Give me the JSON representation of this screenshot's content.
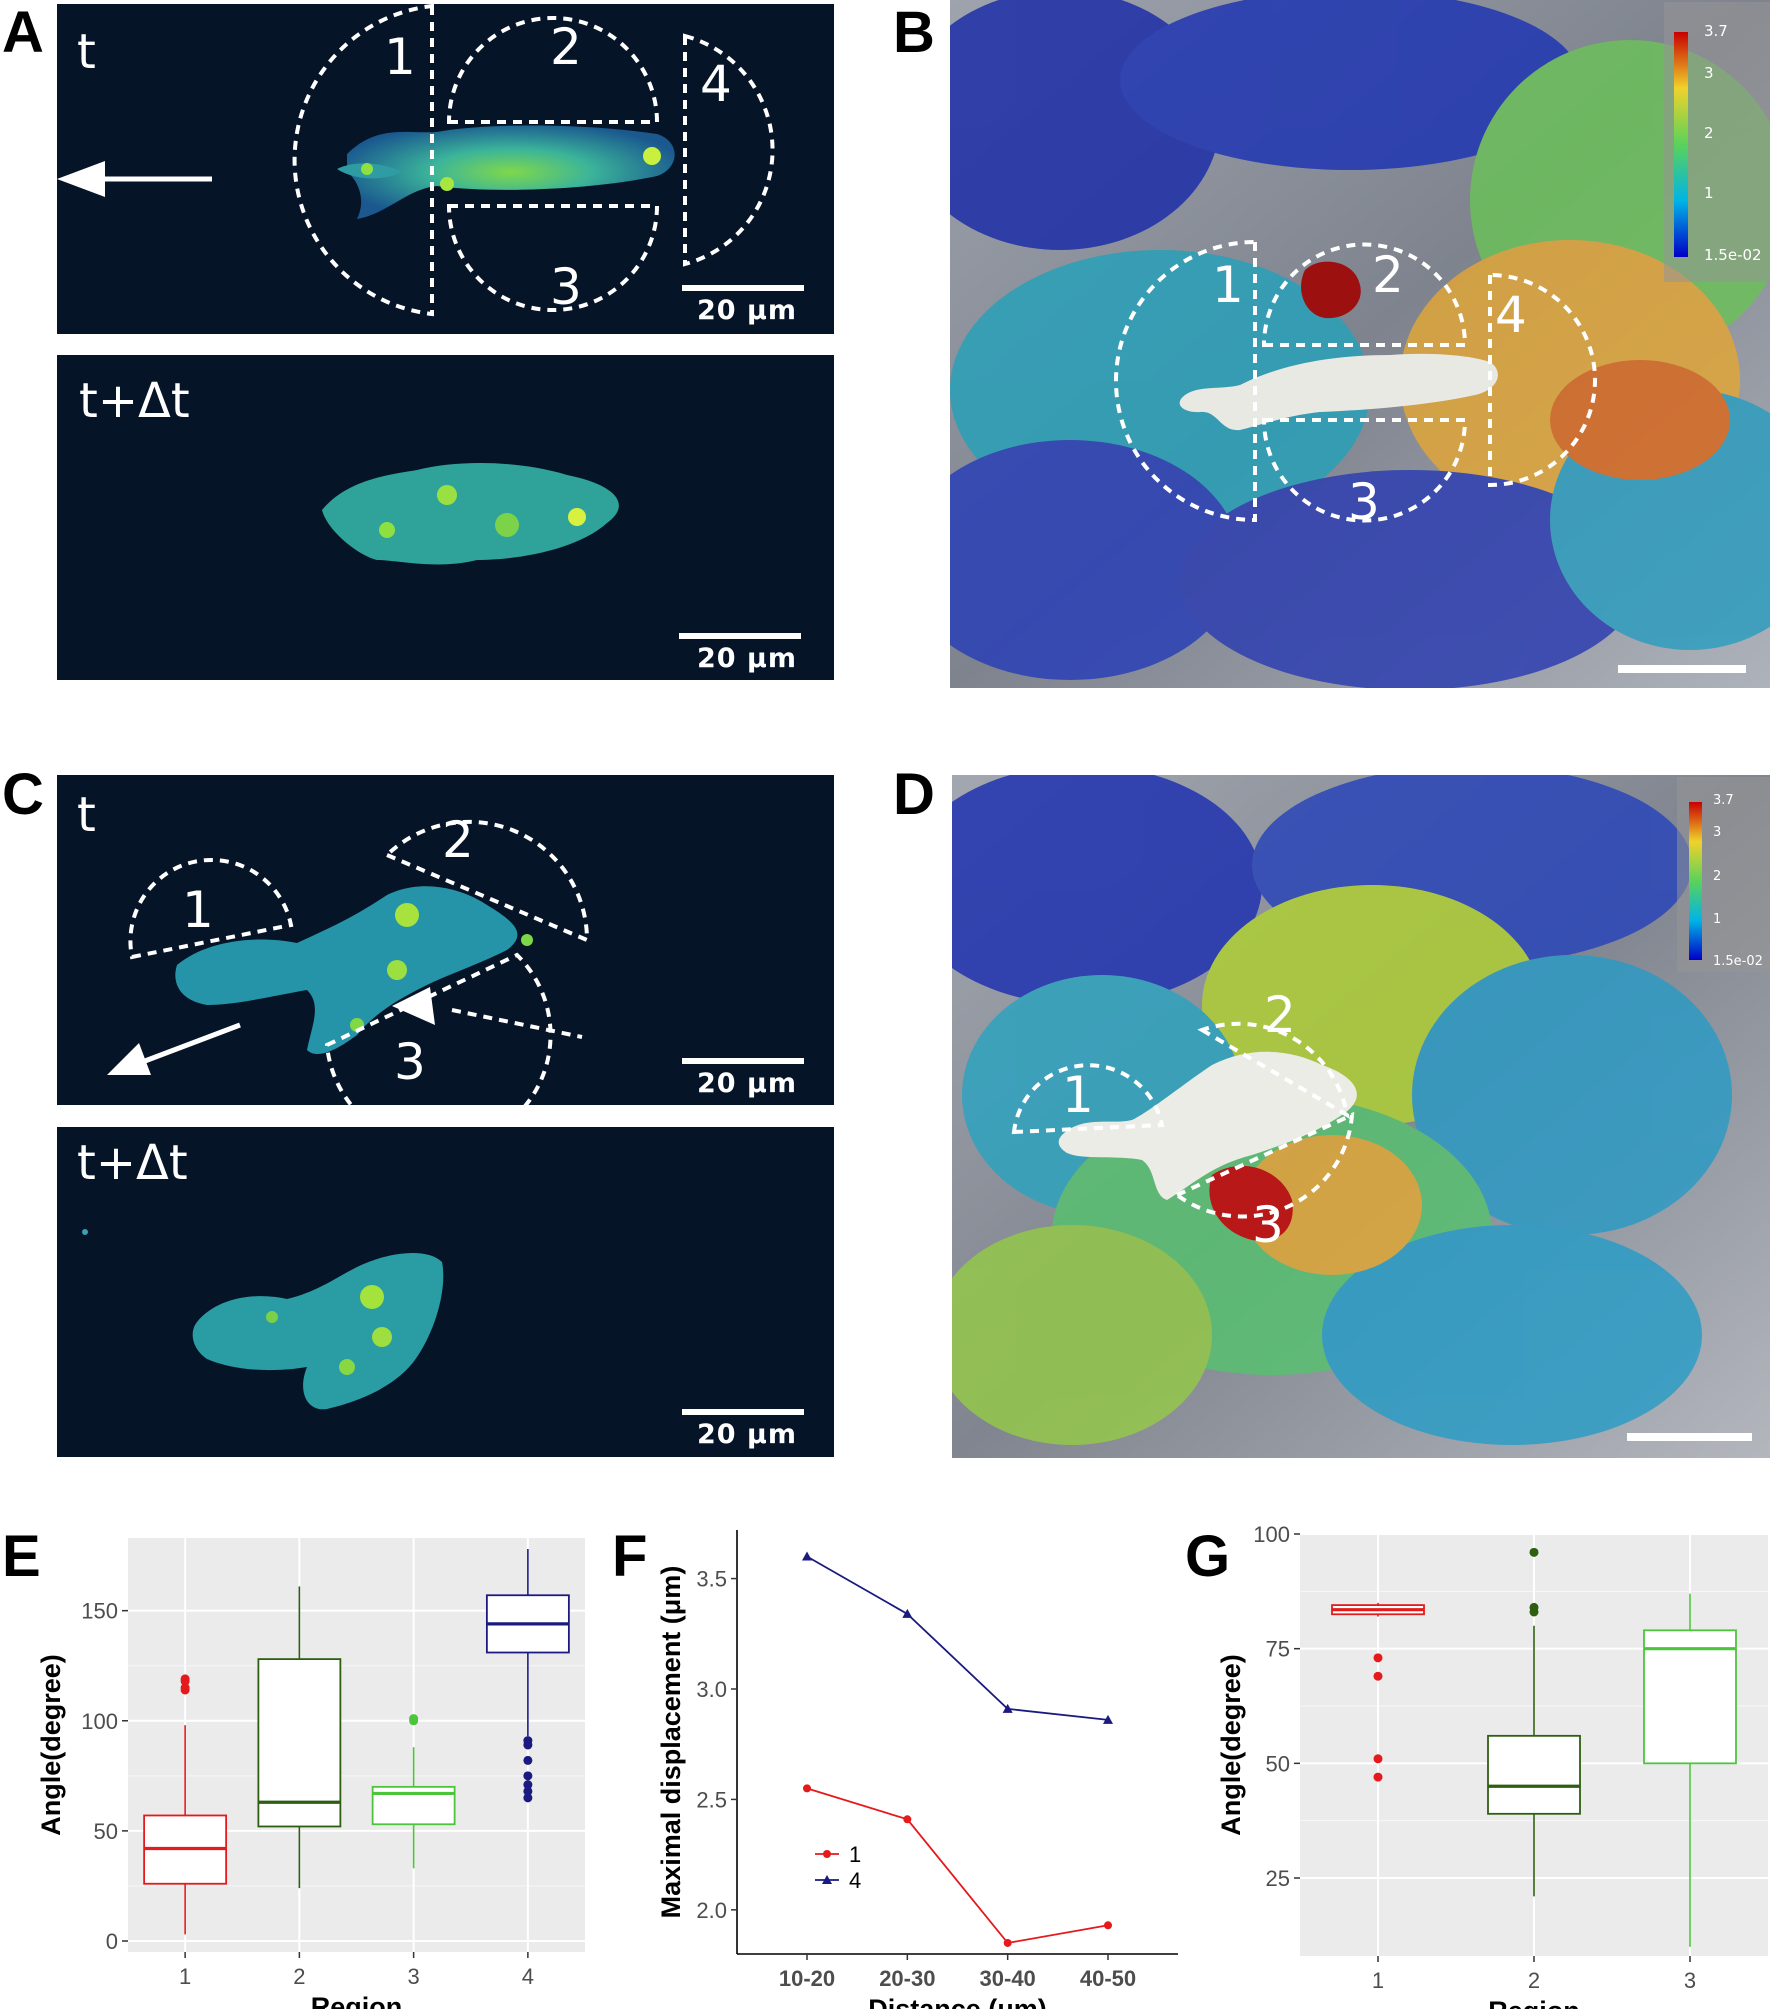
{
  "panels": {
    "A": {
      "letter": "A",
      "t_label": "t",
      "t2_label": "t+Δt",
      "scale_label": "20 μm",
      "scale_label_2": "20 μm",
      "regions": [
        "1",
        "2",
        "3",
        "4"
      ]
    },
    "B": {
      "letter": "B",
      "colorbar_ticks": [
        "3.7",
        "3",
        "2",
        "1",
        "1.5e-02"
      ],
      "regions": [
        "1",
        "2",
        "3",
        "4"
      ]
    },
    "C": {
      "letter": "C",
      "t_label": "t",
      "t2_label": "t+Δt",
      "scale_label": "20 μm",
      "scale_label_2": "20 μm",
      "regions": [
        "1",
        "2",
        "3"
      ]
    },
    "D": {
      "letter": "D",
      "colorbar_ticks": [
        "3.7",
        "3",
        "2",
        "1",
        "1.5e-02"
      ],
      "regions": [
        "1",
        "2",
        "3"
      ]
    },
    "E": {
      "letter": "E"
    },
    "F": {
      "letter": "F"
    },
    "G": {
      "letter": "G"
    }
  },
  "chart_data": [
    {
      "panel": "E",
      "type": "box",
      "xlabel": "Region",
      "ylabel": "Angle(degree)",
      "categories": [
        "1",
        "2",
        "3",
        "4"
      ],
      "ylim": [
        -5,
        183
      ],
      "yticks": [
        0,
        50,
        100,
        150
      ],
      "grid": true,
      "boxes": [
        {
          "category": "1",
          "color": "#e41a1c",
          "lower_whisker": 3,
          "q1": 26,
          "median": 42,
          "q3": 57,
          "upper_whisker": 98,
          "outliers": [
            114,
            115,
            118,
            119
          ]
        },
        {
          "category": "2",
          "color": "#2e5e10",
          "lower_whisker": 24,
          "q1": 52,
          "median": 63,
          "q3": 128,
          "upper_whisker": 161,
          "outliers": []
        },
        {
          "category": "3",
          "color": "#4cc43c",
          "lower_whisker": 33,
          "q1": 53,
          "median": 67,
          "q3": 70,
          "upper_whisker": 88,
          "outliers": [
            100,
            101
          ]
        },
        {
          "category": "4",
          "color": "#1a1a80",
          "lower_whisker": 93,
          "q1": 131,
          "median": 144,
          "q3": 157,
          "upper_whisker": 178,
          "outliers": [
            65,
            68,
            71,
            75,
            82,
            89,
            91
          ]
        }
      ]
    },
    {
      "panel": "F",
      "type": "line",
      "xlabel": "Distance (μm)",
      "ylabel": "Maximal displacement (μm)",
      "categories": [
        "10-20",
        "20-30",
        "30-40",
        "40-50"
      ],
      "ylim": [
        1.8,
        3.72
      ],
      "yticks": [
        2.0,
        2.5,
        3.0,
        3.5
      ],
      "grid": false,
      "legend_position": "bottom-left",
      "series": [
        {
          "name": "1",
          "color": "#e41a1c",
          "marker": "circle",
          "values": [
            2.55,
            2.41,
            1.85,
            1.93
          ]
        },
        {
          "name": "4",
          "color": "#1a1a80",
          "marker": "triangle",
          "values": [
            3.6,
            3.34,
            2.91,
            2.86
          ]
        }
      ]
    },
    {
      "panel": "G",
      "type": "box",
      "xlabel": "Region",
      "ylabel": "Angle(degree)",
      "categories": [
        "1",
        "2",
        "3"
      ],
      "ylim": [
        8,
        100
      ],
      "yticks": [
        25,
        50,
        75,
        100
      ],
      "grid": true,
      "boxes": [
        {
          "category": "1",
          "color": "#e41a1c",
          "lower_whisker": 82,
          "q1": 82.5,
          "median": 83.5,
          "q3": 84.5,
          "upper_whisker": 85,
          "outliers": [
            73,
            69,
            51,
            47
          ]
        },
        {
          "category": "2",
          "color": "#2e5e10",
          "lower_whisker": 21,
          "q1": 39,
          "median": 45,
          "q3": 56,
          "upper_whisker": 80,
          "outliers": [
            83,
            84,
            96
          ]
        },
        {
          "category": "3",
          "color": "#4cc43c",
          "lower_whisker": 10,
          "q1": 50,
          "median": 75,
          "q3": 79,
          "upper_whisker": 87,
          "outliers": []
        }
      ]
    }
  ]
}
